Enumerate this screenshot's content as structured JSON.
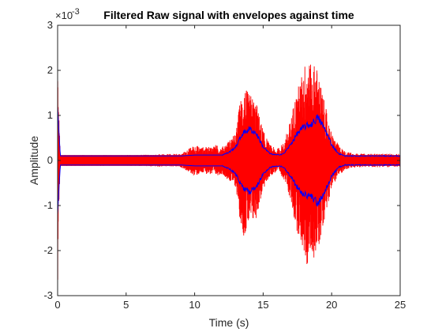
{
  "chart_data": {
    "type": "line",
    "title": "Filtered Raw signal with envelopes against time",
    "xlabel": "Time (s)",
    "ylabel": "Amplitude",
    "y_exponent_label": "×10",
    "y_exponent": "-3",
    "xlim": [
      0,
      25
    ],
    "ylim": [
      -3,
      3
    ],
    "x_ticks": [
      "0",
      "5",
      "10",
      "15",
      "20",
      "25"
    ],
    "y_ticks": [
      "-3",
      "-2",
      "-1",
      "0",
      "1",
      "2",
      "3"
    ],
    "grid": false,
    "legend": "none",
    "series": [
      {
        "color": "#ff0000",
        "style": "raw signal (filled oscillation between ±amplitude)",
        "amplitude_profile": {
          "x": [
            0,
            0.05,
            0.2,
            1,
            5,
            9,
            9.5,
            10,
            10.5,
            11,
            11.5,
            12,
            12.5,
            13,
            13.3,
            13.6,
            13.9,
            14.2,
            14.5,
            14.8,
            15.1,
            15.5,
            16,
            16.5,
            17,
            17.3,
            17.6,
            17.9,
            18.2,
            18.5,
            18.8,
            19.1,
            19.4,
            19.7,
            20,
            20.5,
            21,
            22,
            25
          ],
          "y": [
            3.0,
            1.5,
            0.12,
            0.12,
            0.12,
            0.15,
            0.25,
            0.35,
            0.3,
            0.3,
            0.35,
            0.3,
            0.45,
            0.6,
            1.3,
            1.7,
            1.5,
            1.45,
            1.3,
            0.9,
            0.6,
            0.35,
            0.25,
            0.4,
            0.9,
            1.4,
            1.7,
            2.0,
            2.4,
            2.1,
            2.2,
            1.9,
            1.4,
            1.0,
            0.6,
            0.35,
            0.2,
            0.15,
            0.15
          ]
        }
      },
      {
        "color": "#0000ff",
        "style": "upper/lower envelopes",
        "envelope": {
          "x": [
            0,
            0.1,
            0.2,
            1,
            9,
            10,
            11,
            12,
            12.5,
            13,
            13.5,
            14,
            14.5,
            15,
            15.5,
            16,
            16.5,
            17,
            17.5,
            18,
            18.5,
            19,
            19.5,
            20,
            20.5,
            21,
            25
          ],
          "y": [
            1.2,
            0.6,
            0.1,
            0.1,
            0.1,
            0.12,
            0.12,
            0.12,
            0.18,
            0.3,
            0.6,
            0.7,
            0.6,
            0.3,
            0.15,
            0.12,
            0.15,
            0.35,
            0.6,
            0.75,
            0.8,
            0.95,
            0.7,
            0.35,
            0.15,
            0.1,
            0.1
          ]
        }
      }
    ]
  }
}
